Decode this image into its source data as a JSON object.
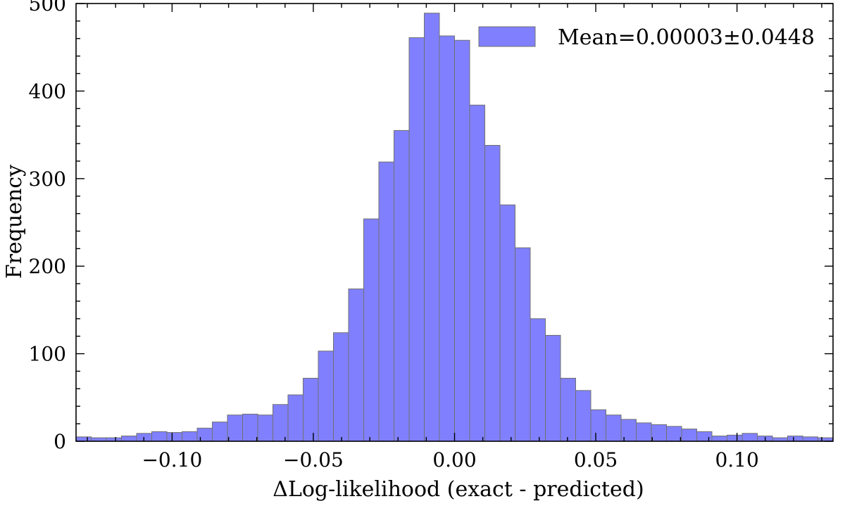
{
  "chart_data": {
    "type": "bar",
    "subtype": "histogram",
    "xlabel": "ΔLog-likelihood (exact - predicted)",
    "ylabel": "Frequency",
    "xlim": [
      -0.134,
      0.134
    ],
    "ylim": [
      0,
      500
    ],
    "xticks": [
      -0.1,
      -0.05,
      0.0,
      0.05,
      0.1
    ],
    "xtick_labels": [
      "−0.10",
      "−0.05",
      "0.00",
      "0.05",
      "0.10"
    ],
    "yticks": [
      0,
      100,
      200,
      300,
      400,
      500
    ],
    "ytick_labels": [
      "0",
      "100",
      "200",
      "300",
      "400",
      "500"
    ],
    "bin_width": 0.00536,
    "bin_edges_start": -0.134,
    "values": [
      5,
      4,
      4,
      6,
      9,
      11,
      10,
      11,
      15,
      22,
      30,
      31,
      30,
      42,
      53,
      72,
      103,
      124,
      174,
      254,
      319,
      355,
      461,
      489,
      463,
      458,
      384,
      338,
      270,
      221,
      140,
      121,
      72,
      58,
      36,
      30,
      25,
      21,
      19,
      17,
      14,
      11,
      6,
      7,
      9,
      6,
      4,
      6,
      5,
      4
    ],
    "bar_color": "#8080ff",
    "edge_color": "#707070",
    "legend": {
      "entries": [
        "Mean=0.00003±0.0448"
      ],
      "placement": "top-right"
    },
    "grid": false,
    "ticks_direction": "in"
  }
}
